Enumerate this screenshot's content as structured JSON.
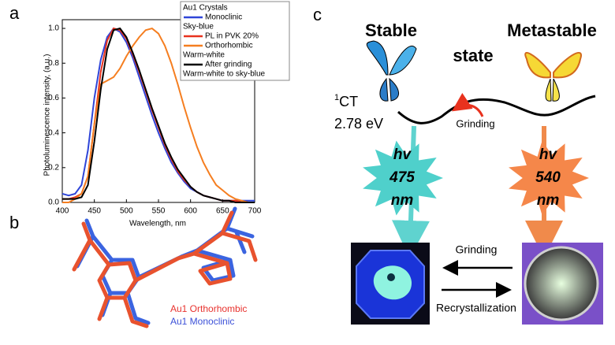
{
  "chart_data": {
    "type": "line",
    "panel_label": "a",
    "xlabel": "Wavelength, nm",
    "ylabel": "Photoluminescence intensity, (a.u.)",
    "xlim": [
      400,
      700
    ],
    "xticks": [
      400,
      450,
      500,
      550,
      600,
      650,
      700
    ],
    "ylim": [
      0,
      1.05
    ],
    "yticks": [
      {
        "value": 0,
        "label": "0.0"
      },
      0.2,
      0.4,
      0.6,
      0.8,
      {
        "value": 1,
        "label": "1.0"
      }
    ],
    "legend_title": "Au1 Crystals",
    "x": [
      400,
      410,
      420,
      430,
      440,
      450,
      460,
      470,
      480,
      490,
      500,
      510,
      520,
      530,
      540,
      550,
      560,
      570,
      580,
      590,
      600,
      610,
      620,
      630,
      640,
      650,
      660,
      670,
      680,
      690,
      700
    ],
    "series": [
      {
        "name": "Monoclinic",
        "note": "Sky-blue",
        "color": "#2f45d8",
        "values": [
          0.05,
          0.04,
          0.05,
          0.1,
          0.3,
          0.6,
          0.82,
          0.95,
          1.0,
          0.98,
          0.92,
          0.83,
          0.72,
          0.61,
          0.5,
          0.4,
          0.31,
          0.23,
          0.17,
          0.12,
          0.08,
          0.06,
          0.04,
          0.03,
          0.02,
          0.01,
          0.01,
          0.01,
          0.01,
          0.01,
          0.01
        ]
      },
      {
        "name": "PL in PVK 20%",
        "color": "#e8321e",
        "values": [
          0.02,
          0.02,
          0.03,
          0.05,
          0.15,
          0.45,
          0.75,
          0.93,
          1.0,
          0.99,
          0.94,
          0.85,
          0.75,
          0.64,
          0.53,
          0.43,
          0.33,
          0.25,
          0.18,
          0.13,
          0.09,
          0.06,
          0.04,
          0.03,
          0.02,
          0.01,
          0.01,
          0.01,
          0.0,
          0.0,
          0.0
        ]
      },
      {
        "name": "Orthorhombic",
        "note": "Warm-white",
        "color": "#f57e20",
        "values": [
          0.0,
          0.0,
          0.02,
          0.05,
          0.15,
          0.45,
          0.68,
          0.7,
          0.72,
          0.77,
          0.84,
          0.9,
          0.95,
          0.99,
          1.0,
          0.97,
          0.9,
          0.8,
          0.68,
          0.55,
          0.43,
          0.32,
          0.23,
          0.16,
          0.1,
          0.07,
          0.04,
          0.02,
          0.01,
          0.0,
          0.0
        ]
      },
      {
        "name": "After grinding",
        "note": "Warm-white to sky-blue",
        "color": "#000000",
        "values": [
          0.02,
          0.02,
          0.02,
          0.03,
          0.1,
          0.35,
          0.65,
          0.88,
          0.99,
          1.0,
          0.95,
          0.86,
          0.76,
          0.65,
          0.54,
          0.44,
          0.34,
          0.26,
          0.19,
          0.14,
          0.09,
          0.06,
          0.04,
          0.03,
          0.02,
          0.01,
          0.01,
          0.0,
          0.0,
          0.0,
          0.0
        ]
      }
    ]
  },
  "panel_b": {
    "label": "b",
    "legend": [
      "Au1 Orthorhombic",
      "Au1 Monoclinic"
    ]
  },
  "panel_c": {
    "label": "c",
    "stable": "Stable",
    "metastable": "Metastable",
    "state": "state",
    "level_sup": "1",
    "level": "CT",
    "energy": "2.78 eV",
    "curve_arrow": "Grinding",
    "emission_left": {
      "hv": "hv",
      "value": "475",
      "unit": "nm"
    },
    "emission_right": {
      "hv": "hv",
      "value": "540",
      "unit": "nm"
    },
    "forward": "Grinding",
    "backward": "Recrystallization"
  }
}
